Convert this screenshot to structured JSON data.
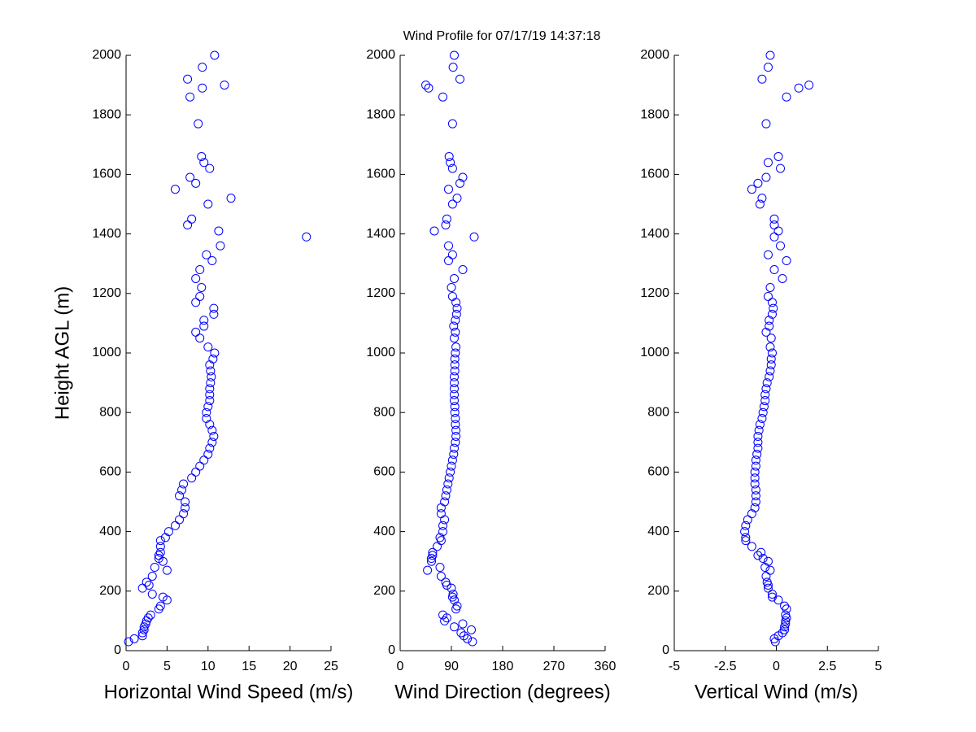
{
  "chart_data": [
    {
      "type": "scatter",
      "title": "Wind Profile for  07/17/19 14:37:18",
      "xlabel": "Horizontal Wind Speed (m/s)",
      "ylabel": "Height AGL (m)",
      "color": "#0000ff",
      "xlim": [
        0,
        25
      ],
      "xticks": [
        0,
        5,
        10,
        15,
        20,
        25
      ],
      "ylim": [
        0,
        2000
      ],
      "yticks": [
        0,
        200,
        400,
        600,
        800,
        1000,
        1200,
        1400,
        1600,
        1800,
        2000
      ],
      "x": [
        0.3,
        1,
        2,
        2,
        2.2,
        2.2,
        2.4,
        2.5,
        2.7,
        3,
        4,
        4.2,
        5,
        4.5,
        3.2,
        2,
        2.8,
        2.5,
        3.2,
        5,
        3.5,
        4.5,
        4,
        4,
        4.2,
        4.2,
        4.2,
        4.8,
        5.2,
        6,
        6.5,
        7,
        7.2,
        7.2,
        6.5,
        6.8,
        7,
        8,
        8.5,
        9,
        9.5,
        10,
        10.2,
        10.5,
        10.7,
        10.5,
        10.2,
        9.8,
        9.8,
        10,
        10.2,
        10.2,
        10.2,
        10.3,
        10.4,
        10.3,
        10.2,
        10.6,
        10.8,
        10,
        9,
        8.5,
        9.5,
        9.5,
        10.7,
        10.7,
        8.5,
        9,
        9.2,
        8.5,
        9,
        10.5,
        9.8,
        11.5,
        22,
        11.3,
        7.5,
        8,
        10,
        12.8,
        6,
        8.5,
        7.8,
        10.2,
        9.5,
        9.2,
        8.8,
        7.8,
        9.3,
        12,
        7.5,
        9.3,
        10.8
      ],
      "y": [
        30,
        40,
        50,
        60,
        70,
        80,
        90,
        100,
        110,
        120,
        140,
        150,
        170,
        180,
        190,
        210,
        220,
        230,
        250,
        270,
        280,
        300,
        310,
        320,
        330,
        350,
        370,
        380,
        400,
        420,
        440,
        460,
        480,
        500,
        520,
        540,
        560,
        580,
        600,
        620,
        640,
        660,
        680,
        700,
        720,
        740,
        760,
        780,
        800,
        820,
        840,
        860,
        880,
        900,
        920,
        940,
        960,
        980,
        1000,
        1020,
        1050,
        1070,
        1090,
        1110,
        1130,
        1150,
        1170,
        1190,
        1220,
        1250,
        1280,
        1310,
        1330,
        1360,
        1390,
        1410,
        1430,
        1450,
        1500,
        1520,
        1550,
        1570,
        1590,
        1620,
        1640,
        1660,
        1770,
        1860,
        1890,
        1900,
        1920,
        1960,
        2000
      ]
    },
    {
      "type": "scatter",
      "xlabel": "Wind Direction (degrees)",
      "color": "#0000ff",
      "xlim": [
        0,
        360
      ],
      "xticks": [
        0,
        90,
        180,
        270,
        360
      ],
      "ylim": [
        0,
        2000
      ],
      "yticks": [
        0,
        200,
        400,
        600,
        800,
        1000,
        1200,
        1400,
        1600,
        1800,
        2000
      ],
      "x": [
        127,
        118,
        112,
        107,
        125,
        95,
        110,
        78,
        82,
        75,
        98,
        100,
        95,
        92,
        93,
        90,
        82,
        80,
        72,
        48,
        70,
        55,
        55,
        57,
        57,
        65,
        72,
        70,
        75,
        75,
        78,
        72,
        72,
        78,
        80,
        82,
        84,
        86,
        88,
        90,
        92,
        94,
        95,
        97,
        98,
        98,
        97,
        97,
        96,
        96,
        95,
        95,
        95,
        95,
        95,
        96,
        96,
        96,
        97,
        98,
        95,
        97,
        94,
        97,
        99,
        100,
        98,
        92,
        90,
        95,
        110,
        85,
        92,
        85,
        130,
        60,
        80,
        82,
        92,
        100,
        85,
        105,
        110,
        92,
        88,
        86,
        92,
        75,
        50,
        45,
        105,
        93,
        95
      ],
      "y": [
        30,
        40,
        50,
        60,
        70,
        80,
        90,
        100,
        110,
        120,
        140,
        150,
        170,
        180,
        190,
        210,
        220,
        230,
        250,
        270,
        280,
        300,
        310,
        320,
        330,
        350,
        370,
        380,
        400,
        420,
        440,
        460,
        480,
        500,
        520,
        540,
        560,
        580,
        600,
        620,
        640,
        660,
        680,
        700,
        720,
        740,
        760,
        780,
        800,
        820,
        840,
        860,
        880,
        900,
        920,
        940,
        960,
        980,
        1000,
        1020,
        1050,
        1070,
        1090,
        1110,
        1130,
        1150,
        1170,
        1190,
        1220,
        1250,
        1280,
        1310,
        1330,
        1360,
        1390,
        1410,
        1430,
        1450,
        1500,
        1520,
        1550,
        1570,
        1590,
        1620,
        1640,
        1660,
        1770,
        1860,
        1890,
        1900,
        1920,
        1960,
        2000
      ]
    },
    {
      "type": "scatter",
      "xlabel": "Vertical Wind (m/s)",
      "color": "#0000ff",
      "xlim": [
        -5,
        5
      ],
      "xticks": [
        -5,
        -2.5,
        0,
        2.5,
        5
      ],
      "ylim": [
        0,
        2000
      ],
      "yticks": [
        0,
        200,
        400,
        600,
        800,
        1000,
        1200,
        1400,
        1600,
        1800,
        2000
      ],
      "x": [
        -0.05,
        -0.1,
        0.1,
        0.3,
        0.4,
        0.4,
        0.45,
        0.45,
        0.5,
        0.45,
        0.5,
        0.4,
        0.1,
        -0.2,
        -0.2,
        -0.4,
        -0.4,
        -0.45,
        -0.5,
        -0.3,
        -0.55,
        -0.4,
        -0.65,
        -0.9,
        -0.75,
        -1.2,
        -1.5,
        -1.5,
        -1.55,
        -1.5,
        -1.4,
        -1.2,
        -1.05,
        -1,
        -1,
        -1,
        -1.05,
        -1.05,
        -1.05,
        -1,
        -1,
        -0.95,
        -0.9,
        -0.9,
        -0.9,
        -0.85,
        -0.8,
        -0.7,
        -0.65,
        -0.6,
        -0.55,
        -0.55,
        -0.5,
        -0.45,
        -0.35,
        -0.3,
        -0.25,
        -0.25,
        -0.2,
        -0.3,
        -0.25,
        -0.5,
        -0.35,
        -0.35,
        -0.2,
        -0.15,
        -0.2,
        -0.4,
        -0.3,
        0.3,
        -0.1,
        0.5,
        -0.4,
        0.2,
        -0.1,
        0.1,
        -0.1,
        -0.1,
        -0.8,
        -0.7,
        -1.2,
        -0.9,
        -0.5,
        0.2,
        -0.4,
        0.1,
        -0.5,
        0.5,
        1.1,
        1.6,
        -0.7,
        -0.4,
        -0.3
      ],
      "y": [
        30,
        40,
        50,
        60,
        70,
        80,
        90,
        100,
        110,
        120,
        140,
        150,
        170,
        180,
        190,
        210,
        220,
        230,
        250,
        270,
        280,
        300,
        310,
        320,
        330,
        350,
        370,
        380,
        400,
        420,
        440,
        460,
        480,
        500,
        520,
        540,
        560,
        580,
        600,
        620,
        640,
        660,
        680,
        700,
        720,
        740,
        760,
        780,
        800,
        820,
        840,
        860,
        880,
        900,
        920,
        940,
        960,
        980,
        1000,
        1020,
        1050,
        1070,
        1090,
        1110,
        1130,
        1150,
        1170,
        1190,
        1220,
        1250,
        1280,
        1310,
        1330,
        1360,
        1390,
        1410,
        1430,
        1450,
        1500,
        1520,
        1550,
        1570,
        1590,
        1620,
        1640,
        1660,
        1770,
        1860,
        1890,
        1900,
        1920,
        1960,
        2000
      ]
    }
  ]
}
